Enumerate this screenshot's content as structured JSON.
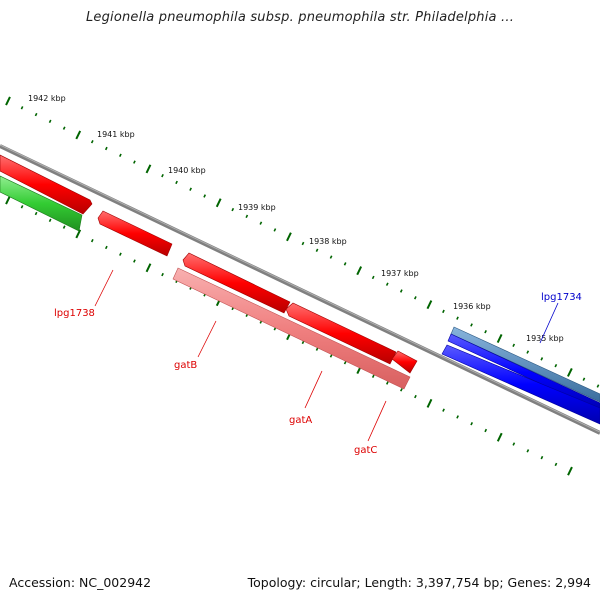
{
  "title": "Legionella pneumophila subsp. pneumophila str. Philadelphia ...",
  "footer": {
    "accession": "Accession: NC_002942",
    "summary": "Topology: circular; Length: 3,397,754 bp; Genes: 2,994"
  },
  "ruler": [
    {
      "label": "1942 kbp"
    },
    {
      "label": "1941 kbp"
    },
    {
      "label": "1940 kbp"
    },
    {
      "label": "1939 kbp"
    },
    {
      "label": "1938 kbp"
    },
    {
      "label": "1937 kbp"
    },
    {
      "label": "1936 kbp"
    },
    {
      "label": "1935 kbp"
    }
  ],
  "gene_labels": [
    {
      "name": "lpg1738",
      "color": "#dd0000"
    },
    {
      "name": "gatB",
      "color": "#dd0000"
    },
    {
      "name": "gatA",
      "color": "#dd0000"
    },
    {
      "name": "gatC",
      "color": "#dd0000"
    },
    {
      "name": "lpg1734",
      "color": "#0000cc"
    }
  ],
  "colors": {
    "backbone": "#808080",
    "gene_red": "#ff0000",
    "gene_pink": "#f08080",
    "gene_green": "#33cc33",
    "gene_blue": "#0000ff",
    "gene_steel": "#4682b4",
    "tick_green": "#006400"
  }
}
